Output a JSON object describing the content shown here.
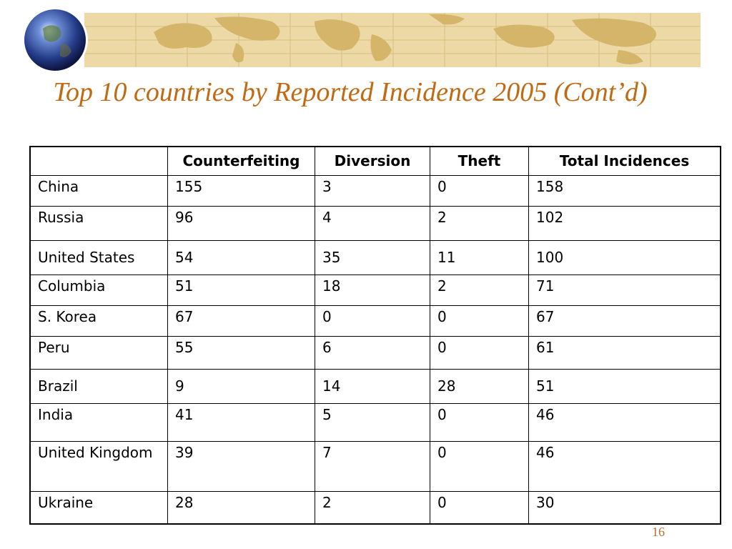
{
  "slide": {
    "title": "Top 10 countries by Reported Incidence 2005 (Cont’d)",
    "page_number": "16"
  },
  "table": {
    "headers": [
      "",
      "Counterfeiting",
      "Diversion",
      "Theft",
      "Total Incidences"
    ],
    "rows": [
      [
        "China",
        "155",
        "3",
        "0",
        "158"
      ],
      [
        "Russia",
        "96",
        "4",
        "2",
        "102"
      ],
      [
        "United States",
        "54",
        "35",
        "11",
        "100"
      ],
      [
        "Columbia",
        "51",
        "18",
        "2",
        "71"
      ],
      [
        "S. Korea",
        "67",
        "0",
        "0",
        "67"
      ],
      [
        "Peru",
        "55",
        "6",
        "0",
        "61"
      ],
      [
        "Brazil",
        "9",
        "14",
        "28",
        "51"
      ],
      [
        "India",
        "41",
        "5",
        "0",
        "46"
      ],
      [
        "United Kingdom",
        "39",
        "7",
        "0",
        "46"
      ],
      [
        "Ukraine",
        "28",
        "2",
        "0",
        "30"
      ]
    ]
  },
  "colors": {
    "title": "#c06a14",
    "banner_background": "#e8d29a",
    "banner_map": "#d4b56a",
    "globe": "#2a3f8a"
  }
}
